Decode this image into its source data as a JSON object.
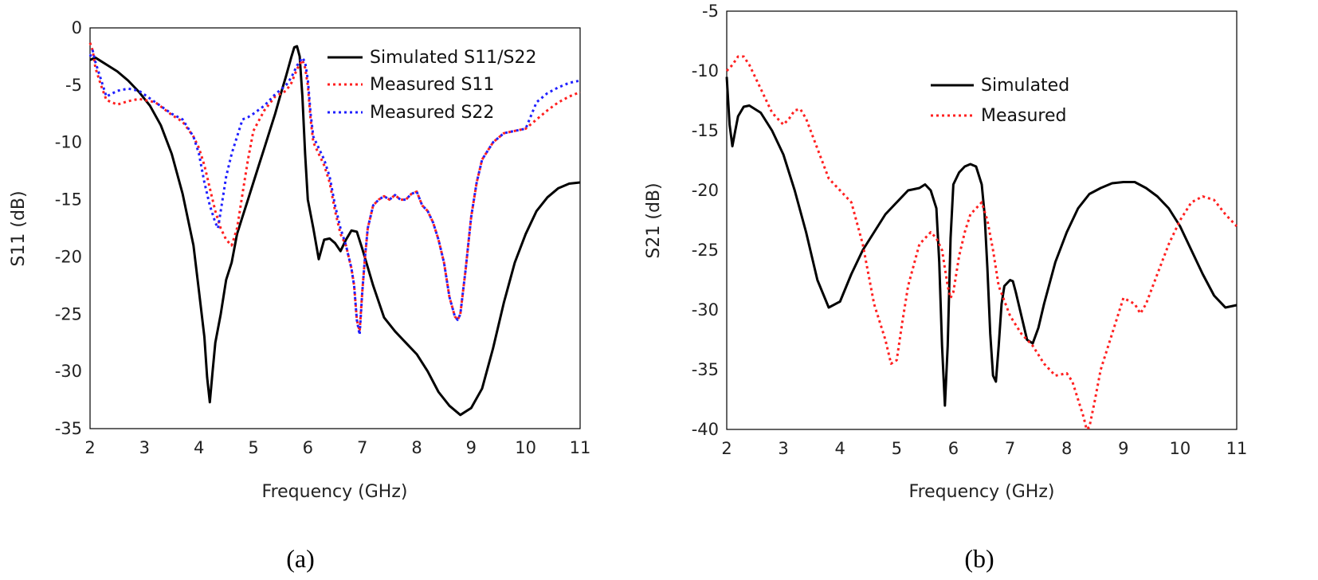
{
  "chart_data": [
    {
      "type": "line",
      "caption": "(a)",
      "xlabel": "Frequency (GHz)",
      "ylabel": "S11 (dB)",
      "xlim": [
        2,
        11
      ],
      "ylim": [
        -35,
        0
      ],
      "xticks": [
        2,
        3,
        4,
        5,
        6,
        7,
        8,
        9,
        10,
        11
      ],
      "yticks": [
        0,
        -5,
        -10,
        -15,
        -20,
        -25,
        -30,
        -35
      ],
      "grid": false,
      "legend_position": "top-right",
      "series": [
        {
          "name": "Simulated S11/S22",
          "color": "#000000",
          "style": "solid",
          "x": [
            2.0,
            2.1,
            2.3,
            2.5,
            2.7,
            2.9,
            3.1,
            3.3,
            3.5,
            3.7,
            3.9,
            4.0,
            4.1,
            4.15,
            4.2,
            4.25,
            4.3,
            4.4,
            4.5,
            4.6,
            4.7,
            4.8,
            4.9,
            5.0,
            5.1,
            5.2,
            5.3,
            5.4,
            5.5,
            5.6,
            5.7,
            5.75,
            5.8,
            5.85,
            5.9,
            5.95,
            6.0,
            6.1,
            6.2,
            6.3,
            6.4,
            6.5,
            6.6,
            6.7,
            6.8,
            6.9,
            7.0,
            7.2,
            7.4,
            7.6,
            7.8,
            8.0,
            8.2,
            8.4,
            8.6,
            8.8,
            9.0,
            9.2,
            9.4,
            9.6,
            9.8,
            10.0,
            10.2,
            10.4,
            10.6,
            10.8,
            11.0
          ],
          "values": [
            -2.8,
            -2.6,
            -3.2,
            -3.8,
            -4.6,
            -5.6,
            -6.8,
            -8.5,
            -11.0,
            -14.5,
            -19.0,
            -23.0,
            -27.0,
            -30.5,
            -32.7,
            -30.0,
            -27.5,
            -25.0,
            -22.0,
            -20.5,
            -18.0,
            -16.5,
            -15.0,
            -13.5,
            -12.0,
            -10.5,
            -9.0,
            -7.5,
            -5.8,
            -4.2,
            -2.5,
            -1.7,
            -1.6,
            -2.5,
            -6.0,
            -11.0,
            -15.0,
            -17.5,
            -20.2,
            -18.5,
            -18.4,
            -18.8,
            -19.5,
            -18.5,
            -17.7,
            -17.8,
            -19.3,
            -22.5,
            -25.3,
            -26.5,
            -27.5,
            -28.5,
            -30.0,
            -31.8,
            -33.0,
            -33.8,
            -33.2,
            -31.5,
            -28.0,
            -24.0,
            -20.5,
            -18.0,
            -16.0,
            -14.8,
            -14.0,
            -13.6,
            -13.5
          ]
        },
        {
          "name": "Measured S11",
          "color": "#ff2020",
          "style": "dotted",
          "x": [
            2.0,
            2.05,
            2.1,
            2.2,
            2.3,
            2.5,
            2.7,
            2.9,
            3.2,
            3.5,
            3.7,
            3.9,
            4.0,
            4.1,
            4.2,
            4.3,
            4.4,
            4.5,
            4.6,
            4.7,
            4.8,
            4.9,
            5.0,
            5.2,
            5.4,
            5.6,
            5.7,
            5.8,
            5.9,
            5.95,
            6.0,
            6.05,
            6.1,
            6.2,
            6.3,
            6.4,
            6.5,
            6.6,
            6.7,
            6.8,
            6.85,
            6.9,
            6.95,
            7.0,
            7.05,
            7.1,
            7.2,
            7.3,
            7.4,
            7.5,
            7.6,
            7.7,
            7.8,
            7.9,
            8.0,
            8.1,
            8.2,
            8.3,
            8.4,
            8.5,
            8.6,
            8.7,
            8.75,
            8.8,
            8.9,
            9.0,
            9.1,
            9.2,
            9.4,
            9.6,
            9.8,
            10.0,
            10.2,
            10.4,
            10.6,
            10.8,
            11.0
          ],
          "values": [
            -1.3,
            -2.0,
            -3.5,
            -5.0,
            -6.3,
            -6.7,
            -6.4,
            -6.2,
            -6.5,
            -7.6,
            -8.2,
            -9.5,
            -10.5,
            -12.0,
            -14.0,
            -16.0,
            -17.5,
            -18.5,
            -19.0,
            -17.5,
            -14.5,
            -11.5,
            -9.0,
            -7.2,
            -6.0,
            -5.5,
            -4.8,
            -3.6,
            -2.8,
            -3.5,
            -5.0,
            -8.0,
            -10.0,
            -11.0,
            -12.0,
            -13.5,
            -16.0,
            -18.0,
            -19.0,
            -21.0,
            -22.5,
            -25.5,
            -26.5,
            -23.0,
            -20.0,
            -17.5,
            -15.5,
            -15.0,
            -14.7,
            -15.0,
            -14.6,
            -15.0,
            -15.0,
            -14.5,
            -14.3,
            -15.5,
            -16.0,
            -17.0,
            -18.5,
            -20.5,
            -23.5,
            -25.2,
            -25.5,
            -25.0,
            -21.0,
            -16.5,
            -13.5,
            -11.5,
            -10.0,
            -9.2,
            -9.0,
            -8.8,
            -8.0,
            -7.2,
            -6.5,
            -6.0,
            -5.6
          ]
        },
        {
          "name": "Measured S22",
          "color": "#2020ff",
          "style": "dotted",
          "x": [
            2.0,
            2.05,
            2.1,
            2.2,
            2.3,
            2.5,
            2.7,
            2.9,
            3.2,
            3.5,
            3.7,
            3.9,
            4.0,
            4.1,
            4.2,
            4.3,
            4.35,
            4.4,
            4.5,
            4.6,
            4.7,
            4.8,
            4.9,
            5.0,
            5.2,
            5.4,
            5.6,
            5.7,
            5.8,
            5.9,
            5.95,
            6.0,
            6.05,
            6.1,
            6.2,
            6.3,
            6.4,
            6.5,
            6.6,
            6.7,
            6.8,
            6.85,
            6.9,
            6.95,
            7.0,
            7.05,
            7.1,
            7.2,
            7.3,
            7.4,
            7.5,
            7.6,
            7.7,
            7.8,
            7.9,
            8.0,
            8.1,
            8.2,
            8.3,
            8.4,
            8.5,
            8.6,
            8.7,
            8.75,
            8.8,
            8.9,
            9.0,
            9.1,
            9.2,
            9.4,
            9.6,
            9.8,
            10.0,
            10.2,
            10.4,
            10.6,
            10.8,
            11.0
          ],
          "values": [
            -2.5,
            -2.0,
            -3.0,
            -4.5,
            -6.0,
            -5.5,
            -5.3,
            -5.5,
            -6.5,
            -7.5,
            -8.0,
            -9.5,
            -11.0,
            -13.5,
            -15.5,
            -17.0,
            -17.5,
            -16.0,
            -13.0,
            -11.0,
            -9.5,
            -8.0,
            -7.8,
            -7.5,
            -6.8,
            -5.8,
            -5.0,
            -4.3,
            -3.3,
            -2.6,
            -3.0,
            -4.5,
            -7.5,
            -9.5,
            -10.5,
            -11.5,
            -13.0,
            -15.5,
            -17.5,
            -19.0,
            -21.0,
            -22.5,
            -25.5,
            -26.8,
            -23.0,
            -20.0,
            -17.5,
            -15.5,
            -15.0,
            -14.7,
            -15.0,
            -14.6,
            -15.0,
            -15.0,
            -14.5,
            -14.3,
            -15.5,
            -16.0,
            -17.0,
            -18.5,
            -20.5,
            -23.5,
            -25.2,
            -25.5,
            -25.0,
            -21.0,
            -16.5,
            -13.5,
            -11.5,
            -10.0,
            -9.2,
            -9.0,
            -8.8,
            -6.5,
            -5.7,
            -5.2,
            -4.8,
            -4.6
          ]
        }
      ]
    },
    {
      "type": "line",
      "caption": "(b)",
      "xlabel": "Frequency (GHz)",
      "ylabel": "S21 (dB)",
      "xlim": [
        2,
        11
      ],
      "ylim": [
        -40,
        -5
      ],
      "xticks": [
        2,
        3,
        4,
        5,
        6,
        7,
        8,
        9,
        10,
        11
      ],
      "yticks": [
        -5,
        -10,
        -15,
        -20,
        -25,
        -30,
        -35,
        -40
      ],
      "grid": false,
      "legend_position": "top-center",
      "series": [
        {
          "name": "Simulated",
          "color": "#000000",
          "style": "solid",
          "x": [
            2.0,
            2.05,
            2.1,
            2.15,
            2.2,
            2.3,
            2.4,
            2.6,
            2.8,
            3.0,
            3.2,
            3.4,
            3.6,
            3.8,
            4.0,
            4.2,
            4.4,
            4.6,
            4.8,
            5.0,
            5.2,
            5.4,
            5.5,
            5.6,
            5.7,
            5.75,
            5.8,
            5.85,
            5.9,
            5.95,
            6.0,
            6.1,
            6.2,
            6.3,
            6.4,
            6.5,
            6.55,
            6.6,
            6.65,
            6.7,
            6.75,
            6.8,
            6.85,
            6.9,
            7.0,
            7.05,
            7.1,
            7.2,
            7.3,
            7.4,
            7.5,
            7.6,
            7.8,
            8.0,
            8.2,
            8.4,
            8.6,
            8.8,
            9.0,
            9.2,
            9.4,
            9.6,
            9.8,
            10.0,
            10.2,
            10.4,
            10.6,
            10.8,
            11.0
          ],
          "values": [
            -10.5,
            -14.5,
            -16.3,
            -15.0,
            -13.8,
            -13.0,
            -12.9,
            -13.5,
            -15.0,
            -17.0,
            -20.0,
            -23.5,
            -27.5,
            -29.8,
            -29.3,
            -27.0,
            -25.0,
            -23.5,
            -22.0,
            -21.0,
            -20.0,
            -19.8,
            -19.5,
            -20.0,
            -21.5,
            -26.0,
            -33.0,
            -38.0,
            -33.0,
            -24.0,
            -19.5,
            -18.5,
            -18.0,
            -17.8,
            -18.0,
            -19.5,
            -22.0,
            -26.5,
            -32.0,
            -35.5,
            -36.0,
            -33.0,
            -29.5,
            -28.0,
            -27.5,
            -27.6,
            -28.5,
            -30.5,
            -32.5,
            -32.8,
            -31.5,
            -29.5,
            -26.0,
            -23.5,
            -21.5,
            -20.3,
            -19.8,
            -19.4,
            -19.3,
            -19.3,
            -19.8,
            -20.5,
            -21.5,
            -23.0,
            -25.0,
            -27.0,
            -28.8,
            -29.8,
            -29.6
          ]
        },
        {
          "name": "Measured",
          "color": "#ff2020",
          "style": "dotted",
          "x": [
            2.0,
            2.1,
            2.2,
            2.3,
            2.4,
            2.6,
            2.8,
            3.0,
            3.1,
            3.2,
            3.3,
            3.4,
            3.6,
            3.8,
            4.0,
            4.2,
            4.4,
            4.6,
            4.8,
            4.9,
            5.0,
            5.1,
            5.2,
            5.4,
            5.6,
            5.7,
            5.8,
            5.9,
            5.95,
            6.0,
            6.1,
            6.2,
            6.3,
            6.4,
            6.5,
            6.6,
            6.7,
            6.8,
            7.0,
            7.2,
            7.4,
            7.6,
            7.8,
            8.0,
            8.1,
            8.2,
            8.3,
            8.35,
            8.4,
            8.5,
            8.6,
            8.8,
            9.0,
            9.2,
            9.3,
            9.4,
            9.6,
            9.8,
            10.0,
            10.2,
            10.4,
            10.6,
            10.8,
            11.0
          ],
          "values": [
            -10.0,
            -9.5,
            -8.8,
            -8.8,
            -9.5,
            -11.5,
            -13.5,
            -14.5,
            -14.0,
            -13.3,
            -13.2,
            -14.0,
            -16.5,
            -19.0,
            -20.0,
            -21.0,
            -24.5,
            -29.5,
            -32.5,
            -34.5,
            -34.2,
            -31.0,
            -28.0,
            -24.5,
            -23.5,
            -24.0,
            -25.0,
            -28.0,
            -29.0,
            -28.5,
            -25.5,
            -23.5,
            -22.0,
            -21.5,
            -21.0,
            -22.5,
            -25.0,
            -28.0,
            -30.5,
            -32.0,
            -33.0,
            -34.5,
            -35.5,
            -35.3,
            -36.0,
            -37.5,
            -39.0,
            -40.0,
            -39.8,
            -37.5,
            -35.0,
            -32.0,
            -29.0,
            -29.5,
            -30.3,
            -29.5,
            -27.0,
            -24.5,
            -22.5,
            -21.0,
            -20.5,
            -20.8,
            -22.0,
            -23.0
          ]
        }
      ]
    }
  ]
}
